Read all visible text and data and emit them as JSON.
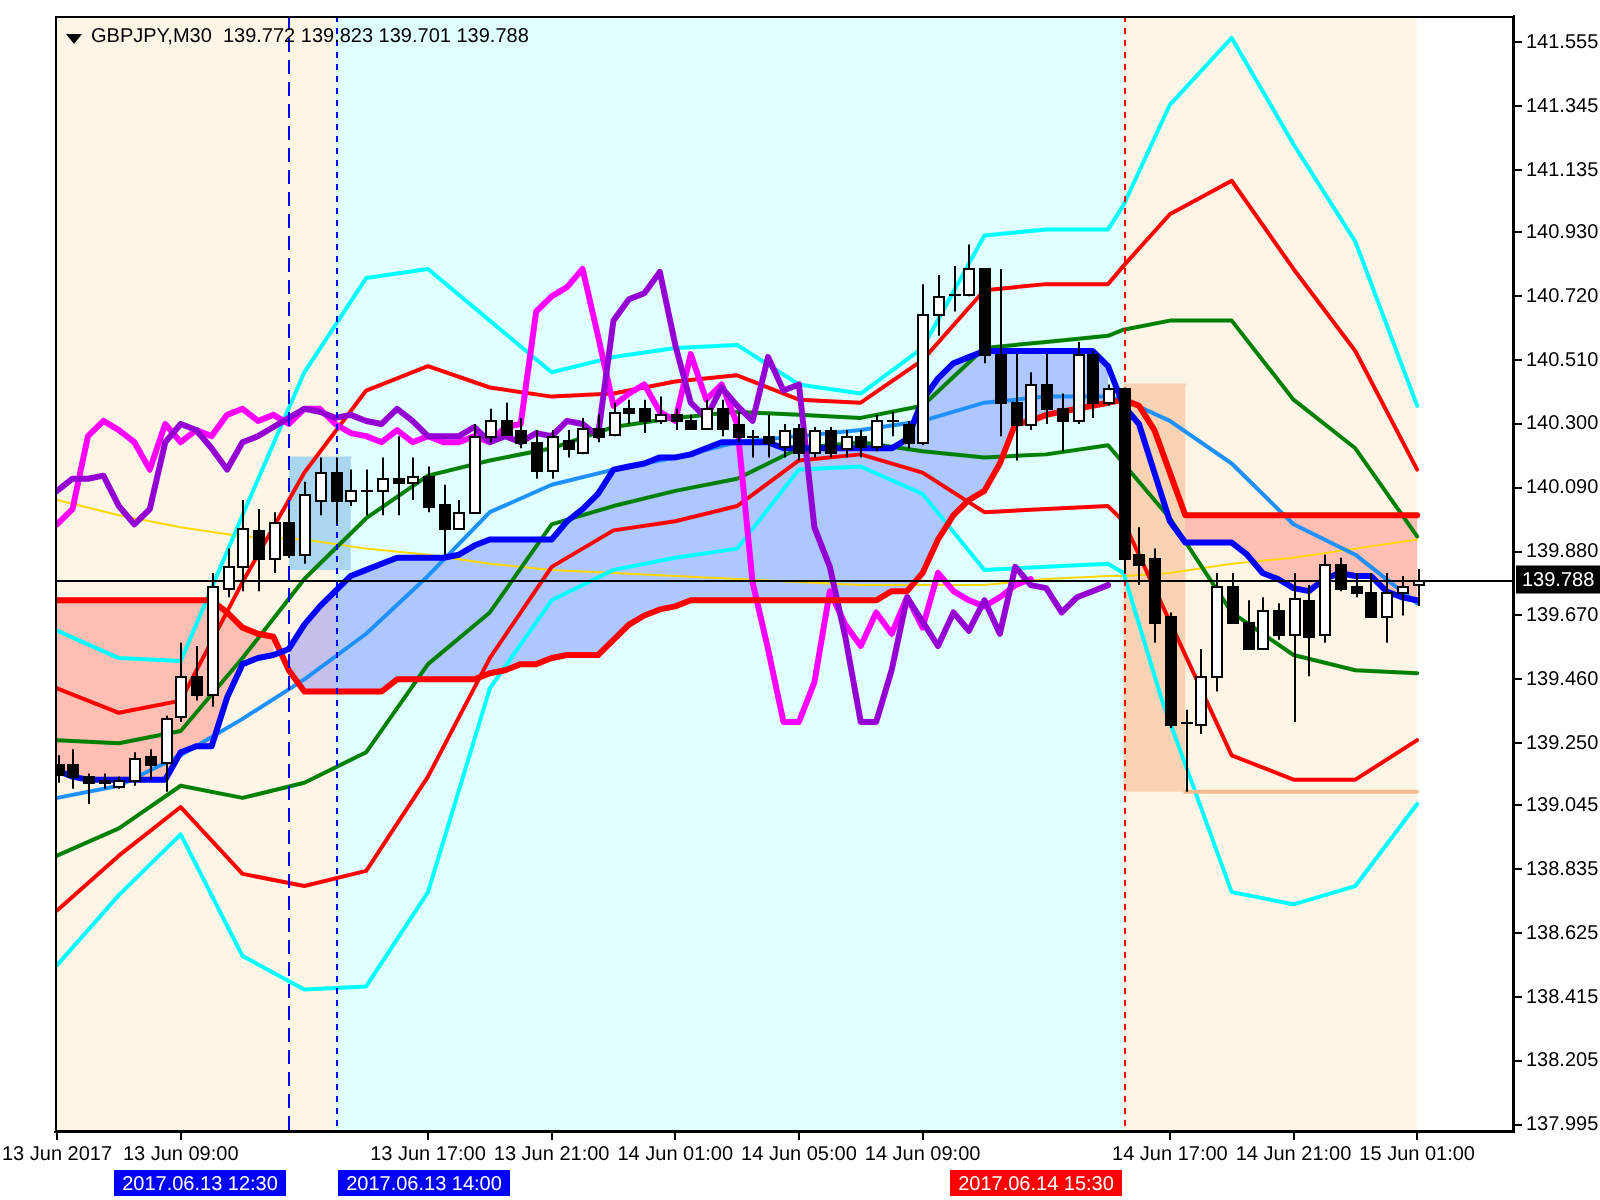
{
  "chart_data": {
    "type": "candlestick",
    "title": "GBPJPY,M30  139.772 139.823 139.701 139.788",
    "x": [
      "2017-06-13T05:00",
      "2017-06-13T05:30",
      "2017-06-13T06:00",
      "2017-06-13T06:30",
      "2017-06-13T07:00",
      "2017-06-13T07:30",
      "2017-06-13T08:00",
      "2017-06-13T08:30",
      "2017-06-13T09:00",
      "2017-06-13T09:30",
      "2017-06-13T10:00",
      "2017-06-13T10:30",
      "2017-06-13T11:00",
      "2017-06-13T11:30",
      "2017-06-13T12:00",
      "2017-06-13T12:30",
      "2017-06-13T13:00",
      "2017-06-13T13:30",
      "2017-06-13T14:00",
      "2017-06-13T14:30",
      "2017-06-13T15:00",
      "2017-06-13T15:30",
      "2017-06-13T16:00",
      "2017-06-13T16:30",
      "2017-06-13T17:00",
      "2017-06-13T17:30",
      "2017-06-13T18:00",
      "2017-06-13T18:30",
      "2017-06-13T19:00",
      "2017-06-13T19:30",
      "2017-06-13T20:00",
      "2017-06-13T20:30",
      "2017-06-13T21:00",
      "2017-06-13T21:30",
      "2017-06-13T22:00",
      "2017-06-13T22:30",
      "2017-06-13T23:00",
      "2017-06-13T23:30",
      "2017-06-14T00:00",
      "2017-06-14T00:30",
      "2017-06-14T01:00",
      "2017-06-14T01:30",
      "2017-06-14T02:00",
      "2017-06-14T02:30",
      "2017-06-14T03:00",
      "2017-06-14T03:30",
      "2017-06-14T04:00",
      "2017-06-14T04:30",
      "2017-06-14T05:00",
      "2017-06-14T05:30",
      "2017-06-14T06:00",
      "2017-06-14T06:30",
      "2017-06-14T07:00",
      "2017-06-14T07:30",
      "2017-06-14T08:00",
      "2017-06-14T08:30",
      "2017-06-14T09:00",
      "2017-06-14T09:30",
      "2017-06-14T10:00",
      "2017-06-14T10:30",
      "2017-06-14T11:00",
      "2017-06-14T11:30",
      "2017-06-14T12:00",
      "2017-06-14T12:30",
      "2017-06-14T13:00",
      "2017-06-14T13:30",
      "2017-06-14T14:00",
      "2017-06-14T14:30",
      "2017-06-14T15:00",
      "2017-06-14T15:30",
      "2017-06-14T16:00",
      "2017-06-14T16:30",
      "2017-06-14T17:00",
      "2017-06-14T17:30",
      "2017-06-14T18:00",
      "2017-06-14T18:30",
      "2017-06-14T19:00",
      "2017-06-14T19:30",
      "2017-06-14T20:00",
      "2017-06-14T20:30",
      "2017-06-14T21:00",
      "2017-06-14T21:30",
      "2017-06-14T22:00",
      "2017-06-14T22:30",
      "2017-06-14T23:00",
      "2017-06-14T23:30",
      "2017-06-15T00:00",
      "2017-06-15T00:30",
      "2017-06-15T01:00"
    ],
    "ohlc": [
      [
        139.18,
        139.21,
        139.12,
        139.15
      ],
      [
        139.18,
        139.23,
        139.1,
        139.14
      ],
      [
        139.14,
        139.15,
        139.05,
        139.12
      ],
      [
        139.13,
        139.15,
        139.1,
        139.12
      ],
      [
        139.11,
        139.14,
        139.1,
        139.13
      ],
      [
        139.13,
        139.22,
        139.11,
        139.2
      ],
      [
        139.21,
        139.23,
        139.13,
        139.18
      ],
      [
        139.19,
        139.34,
        139.09,
        139.33
      ],
      [
        139.34,
        139.58,
        139.32,
        139.47
      ],
      [
        139.47,
        139.57,
        139.39,
        139.41
      ],
      [
        139.41,
        139.81,
        139.37,
        139.77
      ],
      [
        139.76,
        139.89,
        139.73,
        139.83
      ],
      [
        139.83,
        140.05,
        139.75,
        139.96
      ],
      [
        139.95,
        140.02,
        139.75,
        139.86
      ],
      [
        139.86,
        140.01,
        139.81,
        139.98
      ],
      [
        139.98,
        140.02,
        139.86,
        139.87
      ],
      [
        139.87,
        140.11,
        139.84,
        140.07
      ],
      [
        140.05,
        140.19,
        140.0,
        140.14
      ],
      [
        140.14,
        140.19,
        139.97,
        140.05
      ],
      [
        140.05,
        140.15,
        140.03,
        140.08
      ],
      [
        140.08,
        140.15,
        140.0,
        140.08
      ],
      [
        140.08,
        140.19,
        140.0,
        140.12
      ],
      [
        140.12,
        140.26,
        140.0,
        140.11
      ],
      [
        140.11,
        140.19,
        140.05,
        140.13
      ],
      [
        140.13,
        140.16,
        140.01,
        140.03
      ],
      [
        140.04,
        140.1,
        139.87,
        139.96
      ],
      [
        139.96,
        140.05,
        139.96,
        140.01
      ],
      [
        140.01,
        140.3,
        140.01,
        140.26
      ],
      [
        140.26,
        140.35,
        140.24,
        140.31
      ],
      [
        140.31,
        140.37,
        140.26,
        140.27
      ],
      [
        140.28,
        140.32,
        140.22,
        140.24
      ],
      [
        140.24,
        140.28,
        140.12,
        140.15
      ],
      [
        140.15,
        140.28,
        140.12,
        140.26
      ],
      [
        140.25,
        140.28,
        140.19,
        140.22
      ],
      [
        140.21,
        140.32,
        140.2,
        140.29
      ],
      [
        140.29,
        140.33,
        140.24,
        140.26
      ],
      [
        140.27,
        140.37,
        140.26,
        140.34
      ],
      [
        140.35,
        140.38,
        140.3,
        140.34
      ],
      [
        140.35,
        140.38,
        140.27,
        140.31
      ],
      [
        140.31,
        140.39,
        140.3,
        140.33
      ],
      [
        140.33,
        140.35,
        140.28,
        140.31
      ],
      [
        140.31,
        140.33,
        140.28,
        140.29
      ],
      [
        140.29,
        140.38,
        140.28,
        140.35
      ],
      [
        140.35,
        140.38,
        140.26,
        140.29
      ],
      [
        140.3,
        140.34,
        140.24,
        140.26
      ],
      [
        140.26,
        140.28,
        140.19,
        140.26
      ],
      [
        140.26,
        140.33,
        140.19,
        140.24
      ],
      [
        140.23,
        140.3,
        140.19,
        140.28
      ],
      [
        140.29,
        140.3,
        140.18,
        140.21
      ],
      [
        140.21,
        140.29,
        140.19,
        140.28
      ],
      [
        140.28,
        140.29,
        140.19,
        140.21
      ],
      [
        140.22,
        140.28,
        140.19,
        140.26
      ],
      [
        140.26,
        140.28,
        140.19,
        140.23
      ],
      [
        140.23,
        140.33,
        140.21,
        140.31
      ],
      [
        140.31,
        140.34,
        140.26,
        140.31
      ],
      [
        140.3,
        140.31,
        140.22,
        140.24
      ],
      [
        140.24,
        140.76,
        140.23,
        140.66
      ],
      [
        140.66,
        140.79,
        140.59,
        140.72
      ],
      [
        140.73,
        140.82,
        140.67,
        140.73
      ],
      [
        140.73,
        140.89,
        140.72,
        140.81
      ],
      [
        140.81,
        140.81,
        140.5,
        140.53
      ],
      [
        140.53,
        140.81,
        140.26,
        140.37
      ],
      [
        140.37,
        140.53,
        140.18,
        140.3
      ],
      [
        140.3,
        140.47,
        140.28,
        140.43
      ],
      [
        140.43,
        140.53,
        140.3,
        140.35
      ],
      [
        140.35,
        140.4,
        140.21,
        140.31
      ],
      [
        140.31,
        140.57,
        140.3,
        140.53
      ],
      [
        140.53,
        140.54,
        140.32,
        140.37
      ],
      [
        140.37,
        140.43,
        140.36,
        140.42
      ],
      [
        140.42,
        140.42,
        139.81,
        139.86
      ],
      [
        139.87,
        139.96,
        139.77,
        139.84
      ],
      [
        139.86,
        139.89,
        139.58,
        139.65
      ],
      [
        139.67,
        139.68,
        139.3,
        139.31
      ],
      [
        139.32,
        139.36,
        139.09,
        139.32
      ],
      [
        139.31,
        139.56,
        139.28,
        139.47
      ],
      [
        139.47,
        139.81,
        139.42,
        139.77
      ],
      [
        139.77,
        139.81,
        139.65,
        139.65
      ],
      [
        139.65,
        139.72,
        139.56,
        139.56
      ],
      [
        139.56,
        139.73,
        139.56,
        139.69
      ],
      [
        139.69,
        139.71,
        139.59,
        139.61
      ],
      [
        139.61,
        139.81,
        139.32,
        139.73
      ],
      [
        139.72,
        139.77,
        139.47,
        139.6
      ],
      [
        139.61,
        139.87,
        139.58,
        139.84
      ],
      [
        139.84,
        139.86,
        139.75,
        139.76
      ],
      [
        139.77,
        139.81,
        139.73,
        139.75
      ],
      [
        139.75,
        139.81,
        139.67,
        139.67
      ],
      [
        139.67,
        139.81,
        139.58,
        139.75
      ],
      [
        139.75,
        139.8,
        139.67,
        139.77
      ],
      [
        139.772,
        139.823,
        139.701,
        139.788
      ]
    ],
    "series": [
      {
        "type": "line",
        "color": "#ffd700",
        "x": [
          "2017-06-13T05:00",
          "2017-06-13T07:00",
          "2017-06-13T09:00",
          "2017-06-13T11:00",
          "2017-06-13T13:00",
          "2017-06-13T15:00",
          "2017-06-13T17:00",
          "2017-06-13T19:00",
          "2017-06-13T21:00",
          "2017-06-13T23:00",
          "2017-06-14T01:00",
          "2017-06-14T03:00",
          "2017-06-14T05:00",
          "2017-06-14T07:00",
          "2017-06-14T09:00",
          "2017-06-14T11:00",
          "2017-06-14T13:00",
          "2017-06-14T15:00",
          "2017-06-14T15:30",
          "2017-06-14T17:00",
          "2017-06-14T19:00",
          "2017-06-14T21:00",
          "2017-06-14T23:00",
          "2017-06-15T01:00"
        ],
        "values": [
          140.05,
          140.0,
          139.96,
          139.93,
          139.92,
          139.89,
          139.87,
          139.84,
          139.82,
          139.81,
          139.8,
          139.79,
          139.78,
          139.77,
          139.77,
          139.77,
          139.79,
          139.8,
          139.8,
          139.81,
          139.84,
          139.86,
          139.89,
          139.92
        ]
      },
      {
        "type": "line",
        "color": "#00ffff",
        "x": [
          "2017-06-13T05:00",
          "2017-06-13T07:00",
          "2017-06-13T09:00",
          "2017-06-13T11:00",
          "2017-06-13T13:00",
          "2017-06-13T15:00",
          "2017-06-13T17:00",
          "2017-06-13T19:00",
          "2017-06-13T21:00",
          "2017-06-13T23:00",
          "2017-06-14T01:00",
          "2017-06-14T03:00",
          "2017-06-14T05:00",
          "2017-06-14T07:00",
          "2017-06-14T09:00",
          "2017-06-14T11:00",
          "2017-06-14T13:00",
          "2017-06-14T15:00",
          "2017-06-14T15:30",
          "2017-06-14T17:00",
          "2017-06-14T19:00",
          "2017-06-14T21:00",
          "2017-06-14T23:00",
          "2017-06-15T01:00"
        ],
        "values": [
          139.62,
          139.53,
          139.52,
          140.0,
          140.47,
          140.78,
          140.81,
          140.64,
          140.47,
          140.52,
          140.55,
          140.56,
          140.43,
          140.4,
          140.55,
          140.92,
          140.94,
          140.94,
          141.02,
          141.35,
          141.57,
          141.22,
          140.9,
          140.36
        ]
      },
      {
        "type": "line",
        "color": "#ff0000",
        "x": [
          "2017-06-13T05:00",
          "2017-06-13T07:00",
          "2017-06-13T09:00",
          "2017-06-13T11:00",
          "2017-06-13T13:00",
          "2017-06-13T15:00",
          "2017-06-13T17:00",
          "2017-06-13T19:00",
          "2017-06-13T21:00",
          "2017-06-13T23:00",
          "2017-06-14T01:00",
          "2017-06-14T03:00",
          "2017-06-14T05:00",
          "2017-06-14T07:00",
          "2017-06-14T09:00",
          "2017-06-14T11:00",
          "2017-06-14T13:00",
          "2017-06-14T15:00",
          "2017-06-14T15:30",
          "2017-06-14T17:00",
          "2017-06-14T19:00",
          "2017-06-14T21:00",
          "2017-06-14T23:00",
          "2017-06-15T01:00"
        ],
        "values": [
          139.43,
          139.35,
          139.39,
          139.78,
          140.14,
          140.41,
          140.49,
          140.42,
          140.39,
          140.4,
          140.44,
          140.46,
          140.38,
          140.37,
          140.51,
          140.74,
          140.76,
          140.76,
          140.82,
          140.99,
          141.1,
          140.81,
          140.54,
          140.15
        ]
      },
      {
        "type": "line",
        "color": "#008000",
        "x": [
          "2017-06-13T05:00",
          "2017-06-13T07:00",
          "2017-06-13T09:00",
          "2017-06-13T11:00",
          "2017-06-13T13:00",
          "2017-06-13T15:00",
          "2017-06-13T17:00",
          "2017-06-13T19:00",
          "2017-06-13T21:00",
          "2017-06-13T23:00",
          "2017-06-14T01:00",
          "2017-06-14T03:00",
          "2017-06-14T05:00",
          "2017-06-14T07:00",
          "2017-06-14T09:00",
          "2017-06-14T11:00",
          "2017-06-14T13:00",
          "2017-06-14T15:00",
          "2017-06-14T15:30",
          "2017-06-14T17:00",
          "2017-06-14T19:00",
          "2017-06-14T21:00",
          "2017-06-14T23:00",
          "2017-06-15T01:00"
        ],
        "values": [
          139.26,
          139.25,
          139.29,
          139.53,
          139.79,
          139.99,
          140.13,
          140.18,
          140.22,
          140.29,
          140.32,
          140.34,
          140.33,
          140.32,
          140.36,
          140.55,
          140.57,
          140.59,
          140.61,
          140.64,
          140.64,
          140.38,
          140.22,
          139.93
        ]
      },
      {
        "type": "line",
        "color": "#1e90ff",
        "x": [
          "2017-06-13T05:00",
          "2017-06-13T07:00",
          "2017-06-13T09:00",
          "2017-06-13T11:00",
          "2017-06-13T13:00",
          "2017-06-13T15:00",
          "2017-06-13T17:00",
          "2017-06-13T19:00",
          "2017-06-13T21:00",
          "2017-06-13T23:00",
          "2017-06-14T01:00",
          "2017-06-14T03:00",
          "2017-06-14T05:00",
          "2017-06-14T07:00",
          "2017-06-14T09:00",
          "2017-06-14T11:00",
          "2017-06-14T13:00",
          "2017-06-14T15:00",
          "2017-06-14T15:30",
          "2017-06-14T17:00",
          "2017-06-14T19:00",
          "2017-06-14T21:00",
          "2017-06-14T23:00",
          "2017-06-15T01:00"
        ],
        "values": [
          139.07,
          139.11,
          139.21,
          139.33,
          139.46,
          139.61,
          139.8,
          140.01,
          140.1,
          140.15,
          140.19,
          140.24,
          140.26,
          140.28,
          140.31,
          140.37,
          140.39,
          140.39,
          140.38,
          140.31,
          140.17,
          139.97,
          139.87,
          139.71
        ]
      },
      {
        "type": "line",
        "color": "#008000",
        "x": [
          "2017-06-13T05:00",
          "2017-06-13T07:00",
          "2017-06-13T09:00",
          "2017-06-13T11:00",
          "2017-06-13T13:00",
          "2017-06-13T15:00",
          "2017-06-13T17:00",
          "2017-06-13T19:00",
          "2017-06-13T21:00",
          "2017-06-13T23:00",
          "2017-06-14T01:00",
          "2017-06-14T03:00",
          "2017-06-14T05:00",
          "2017-06-14T07:00",
          "2017-06-14T09:00",
          "2017-06-14T11:00",
          "2017-06-14T13:00",
          "2017-06-14T15:00",
          "2017-06-14T15:30",
          "2017-06-14T17:00",
          "2017-06-14T19:00",
          "2017-06-14T21:00",
          "2017-06-14T23:00",
          "2017-06-15T01:00"
        ],
        "values": [
          138.88,
          138.97,
          139.11,
          139.07,
          139.12,
          139.22,
          139.51,
          139.68,
          139.97,
          140.03,
          140.08,
          140.12,
          140.22,
          140.24,
          140.21,
          140.19,
          140.2,
          140.23,
          140.17,
          139.99,
          139.68,
          139.54,
          139.49,
          139.48
        ]
      },
      {
        "type": "line",
        "color": "#ff0000",
        "x": [
          "2017-06-13T05:00",
          "2017-06-13T07:00",
          "2017-06-13T09:00",
          "2017-06-13T11:00",
          "2017-06-13T13:00",
          "2017-06-13T15:00",
          "2017-06-13T17:00",
          "2017-06-13T19:00",
          "2017-06-13T21:00",
          "2017-06-13T23:00",
          "2017-06-14T01:00",
          "2017-06-14T03:00",
          "2017-06-14T05:00",
          "2017-06-14T07:00",
          "2017-06-14T09:00",
          "2017-06-14T11:00",
          "2017-06-14T13:00",
          "2017-06-14T15:00",
          "2017-06-14T15:30",
          "2017-06-14T17:00",
          "2017-06-14T19:00",
          "2017-06-14T21:00",
          "2017-06-14T23:00",
          "2017-06-15T01:00"
        ],
        "values": [
          138.7,
          138.88,
          139.04,
          138.82,
          138.78,
          138.83,
          139.14,
          139.53,
          139.83,
          139.95,
          139.98,
          140.03,
          140.18,
          140.2,
          140.14,
          140.01,
          140.02,
          140.03,
          139.98,
          139.65,
          139.21,
          139.13,
          139.13,
          139.26
        ]
      },
      {
        "type": "line",
        "color": "#00ffff",
        "x": [
          "2017-06-13T05:00",
          "2017-06-13T07:00",
          "2017-06-13T09:00",
          "2017-06-13T11:00",
          "2017-06-13T13:00",
          "2017-06-13T15:00",
          "2017-06-13T17:00",
          "2017-06-13T19:00",
          "2017-06-13T21:00",
          "2017-06-13T23:00",
          "2017-06-14T01:00",
          "2017-06-14T03:00",
          "2017-06-14T05:00",
          "2017-06-14T07:00",
          "2017-06-14T09:00",
          "2017-06-14T11:00",
          "2017-06-14T13:00",
          "2017-06-14T15:00",
          "2017-06-14T15:30",
          "2017-06-14T16:45",
          "2017-06-14T19:00",
          "2017-06-14T21:00",
          "2017-06-14T23:00",
          "2017-06-15T01:00"
        ],
        "values": [
          138.52,
          138.75,
          138.95,
          138.55,
          138.44,
          138.45,
          138.76,
          139.43,
          139.72,
          139.82,
          139.86,
          139.89,
          140.15,
          140.16,
          140.07,
          139.82,
          139.83,
          139.84,
          139.81,
          139.39,
          138.76,
          138.72,
          138.78,
          139.05
        ]
      },
      {
        "type": "line",
        "color": "#ff00ff",
        "values": [
          139.97,
          140.02,
          140.26,
          140.31,
          140.28,
          140.24,
          140.15,
          140.3,
          140.24,
          140.28,
          140.26,
          140.33,
          140.35,
          140.31,
          140.33,
          140.3,
          140.35,
          140.35,
          140.3,
          140.27,
          140.26,
          140.24,
          140.28,
          140.24,
          140.26,
          140.24,
          140.24,
          140.26,
          140.24,
          140.29,
          140.3,
          140.67,
          140.72,
          140.75,
          140.81,
          140.59,
          140.36,
          140.4,
          140.43,
          140.34,
          140.31,
          140.53,
          140.38,
          140.43,
          140.3,
          139.78,
          139.56,
          139.32,
          139.32,
          139.45,
          139.75,
          139.64,
          139.57,
          139.68,
          139.61,
          139.73,
          139.63,
          139.81,
          139.75,
          139.72,
          139.7,
          139.73,
          139.77,
          139.79,
          null,
          null,
          null,
          null,
          null,
          null,
          null,
          null,
          null,
          null,
          null,
          null,
          null,
          null,
          null,
          null,
          null,
          null,
          null,
          null,
          null,
          null,
          null,
          null,
          null
        ]
      },
      {
        "type": "line",
        "color": "#9400d3",
        "values": [
          140.08,
          140.12,
          140.12,
          140.13,
          140.03,
          139.97,
          140.02,
          140.24,
          140.3,
          140.28,
          140.22,
          140.15,
          140.24,
          140.26,
          140.29,
          140.32,
          140.35,
          140.34,
          140.32,
          140.33,
          140.31,
          140.3,
          140.35,
          140.31,
          140.26,
          140.26,
          140.26,
          140.29,
          140.24,
          140.26,
          140.24,
          140.27,
          140.26,
          140.31,
          140.3,
          140.26,
          140.64,
          140.71,
          140.73,
          140.8,
          140.56,
          140.37,
          140.32,
          140.42,
          140.36,
          140.31,
          140.52,
          140.41,
          140.43,
          139.96,
          139.83,
          139.6,
          139.32,
          139.32,
          139.49,
          139.73,
          139.65,
          139.57,
          139.68,
          139.62,
          139.72,
          139.61,
          139.83,
          139.77,
          139.76,
          139.68,
          139.73,
          139.75,
          139.77,
          null,
          null,
          null,
          null,
          null,
          null,
          null,
          null,
          null,
          null,
          null,
          null,
          null,
          null,
          null,
          null,
          null,
          null,
          null,
          null
        ]
      },
      {
        "type": "line",
        "color": "#ff0000",
        "values": [
          139.72,
          139.72,
          139.72,
          139.72,
          139.72,
          139.72,
          139.72,
          139.72,
          139.72,
          139.72,
          139.72,
          139.68,
          139.63,
          139.61,
          139.6,
          139.49,
          139.42,
          139.42,
          139.42,
          139.42,
          139.42,
          139.42,
          139.46,
          139.46,
          139.46,
          139.46,
          139.46,
          139.46,
          139.48,
          139.49,
          139.51,
          139.51,
          139.53,
          139.54,
          139.54,
          139.54,
          139.59,
          139.64,
          139.67,
          139.69,
          139.7,
          139.72,
          139.72,
          139.72,
          139.72,
          139.72,
          139.72,
          139.72,
          139.72,
          139.72,
          139.72,
          139.72,
          139.72,
          139.72,
          139.75,
          139.75,
          139.81,
          139.92,
          140.0,
          140.05,
          140.08,
          140.17,
          140.3,
          140.31,
          140.33,
          140.34,
          140.35,
          140.36,
          140.37,
          140.38,
          140.36,
          140.28,
          140.14,
          140.0,
          140.0,
          140.0,
          140.0,
          140.0,
          140.0,
          140.0,
          140.0,
          140.0,
          140.0,
          140.0,
          140.0,
          140.0,
          140.0,
          140.0,
          140.0
        ],
        "lower": [
          139.16,
          139.14,
          139.13,
          139.13,
          139.13,
          139.13,
          139.13,
          139.13,
          139.22,
          139.24,
          139.24,
          139.4,
          139.51,
          139.53,
          139.54,
          null,
          null,
          null,
          null,
          null,
          null,
          null,
          null,
          null,
          null,
          null,
          null,
          null,
          null,
          null,
          null,
          null,
          null,
          null,
          null,
          null,
          null,
          null,
          null,
          null,
          null,
          null,
          null,
          null,
          null,
          null,
          null,
          null,
          null,
          null,
          null,
          null,
          null,
          null,
          null,
          null,
          null,
          null,
          null,
          null,
          null,
          null,
          null,
          null,
          null,
          null,
          null,
          null,
          null,
          140.36,
          140.3,
          140.14,
          139.98,
          139.91,
          139.91,
          139.91,
          139.91,
          139.87,
          139.81,
          139.79,
          139.76,
          139.75,
          139.79,
          139.81,
          139.8,
          139.8,
          139.75,
          139.73,
          139.72
        ],
        "upper": [
          139.72,
          139.72,
          139.72,
          139.72,
          139.72,
          139.72,
          139.72,
          139.72,
          139.72,
          139.72,
          139.72,
          139.68,
          139.63,
          139.61,
          139.6,
          null,
          null,
          null,
          null,
          null,
          null,
          null,
          null,
          null,
          null,
          null,
          null,
          null,
          null,
          null,
          null,
          null,
          null,
          null,
          null,
          null,
          null,
          null,
          null,
          null,
          null,
          null,
          null,
          null,
          null,
          null,
          null,
          null,
          null,
          null,
          null,
          null,
          null,
          null,
          null,
          null,
          null,
          null,
          null,
          null,
          null,
          null,
          null,
          null,
          null,
          null,
          null,
          null,
          null,
          140.38,
          140.36,
          140.28,
          140.14,
          140.0,
          140.0,
          140.0,
          140.0,
          140.0,
          140.0,
          140.0,
          140.0,
          140.0,
          140.0,
          140.0,
          140.0,
          140.0,
          140.0,
          140.0,
          140.0
        ]
      },
      {
        "type": "line",
        "color": "#0000ff",
        "values": [
          139.16,
          139.14,
          139.13,
          139.13,
          139.13,
          139.13,
          139.13,
          139.13,
          139.22,
          139.24,
          139.24,
          139.4,
          139.51,
          139.53,
          139.54,
          139.56,
          139.64,
          139.7,
          139.75,
          139.8,
          139.82,
          139.84,
          139.86,
          139.86,
          139.86,
          139.86,
          139.87,
          139.9,
          139.92,
          139.92,
          139.92,
          139.92,
          139.92,
          139.98,
          140.02,
          140.07,
          140.15,
          140.16,
          140.17,
          140.19,
          140.19,
          140.2,
          140.22,
          140.24,
          140.24,
          140.24,
          140.24,
          140.22,
          140.22,
          140.22,
          140.22,
          140.22,
          140.22,
          140.22,
          140.22,
          140.25,
          140.38,
          140.45,
          140.5,
          140.52,
          140.54,
          140.54,
          140.54,
          140.54,
          140.54,
          140.54,
          140.54,
          140.54,
          140.49,
          140.36,
          140.3,
          140.14,
          139.98,
          139.91,
          139.91,
          139.91,
          139.91,
          139.87,
          139.81,
          139.79,
          139.76,
          139.75,
          139.79,
          139.81,
          139.8,
          139.8,
          139.75,
          139.73,
          139.72
        ],
        "lower": [
          null,
          null,
          null,
          null,
          null,
          null,
          null,
          null,
          null,
          null,
          null,
          null,
          null,
          null,
          null,
          139.49,
          139.42,
          139.42,
          139.42,
          139.42,
          139.42,
          139.42,
          139.46,
          139.46,
          139.46,
          139.46,
          139.46,
          139.46,
          139.48,
          139.49,
          139.51,
          139.51,
          139.53,
          139.54,
          139.54,
          139.54,
          139.59,
          139.64,
          139.67,
          139.69,
          139.7,
          139.72,
          139.72,
          139.72,
          139.72,
          139.72,
          139.72,
          139.72,
          139.72,
          139.72,
          139.72,
          139.72,
          139.72,
          139.72,
          139.75,
          139.75,
          139.81,
          139.92,
          140.0,
          140.05,
          140.08,
          140.17,
          140.3,
          140.31,
          140.33,
          140.34,
          140.35,
          140.36,
          140.37,
          null,
          null,
          null,
          null,
          null,
          null,
          null,
          null,
          null,
          null,
          null,
          null,
          null,
          null,
          null,
          null,
          null,
          null,
          null,
          null
        ],
        "upper": [
          null,
          null,
          null,
          null,
          null,
          null,
          null,
          null,
          null,
          null,
          null,
          null,
          null,
          null,
          null,
          139.56,
          139.64,
          139.7,
          139.75,
          139.8,
          139.82,
          139.84,
          139.86,
          139.86,
          139.86,
          139.86,
          139.87,
          139.9,
          139.92,
          139.92,
          139.92,
          139.92,
          139.92,
          139.98,
          140.02,
          140.07,
          140.15,
          140.16,
          140.17,
          140.19,
          140.19,
          140.2,
          140.22,
          140.24,
          140.24,
          140.24,
          140.24,
          140.22,
          140.22,
          140.22,
          140.22,
          140.22,
          140.22,
          140.22,
          140.22,
          140.25,
          140.38,
          140.45,
          140.5,
          140.52,
          140.54,
          140.54,
          140.54,
          140.54,
          140.54,
          140.54,
          140.54,
          140.54,
          140.49,
          null,
          null,
          null,
          null,
          null,
          null,
          null,
          null,
          null,
          null,
          null,
          null,
          null,
          null,
          null,
          null,
          null,
          null,
          null,
          null
        ]
      },
      {
        "type": "line",
        "color": "#fad2b4",
        "x": [
          "2017-06-14T15:30",
          "2017-06-14T17:30"
        ],
        "values": [
          140.43,
          140.43
        ],
        "lower": [
          139.09,
          139.09
        ],
        "upper": [
          140.43,
          140.43
        ]
      },
      {
        "type": "line",
        "color": "#f2bd92",
        "x": [
          "2017-06-14T17:30",
          "2017-06-15T01:00"
        ],
        "values": [
          139.09,
          139.09
        ]
      },
      {
        "type": "line",
        "color": "#aad6f0",
        "x": [
          "2017-06-13T12:30",
          "2017-06-13T14:30"
        ],
        "values": [
          140.19,
          140.19
        ],
        "lower": [
          139.82,
          139.82
        ],
        "upper": [
          140.19,
          140.19
        ]
      }
    ],
    "xlim": [
      "2017-06-13T04:56",
      "2017-06-15T04:08"
    ],
    "ylim": [
      137.971,
      141.642
    ],
    "xticks": [
      {
        "value": "2017-06-13T05:00",
        "label": "13 Jun 2017"
      },
      {
        "value": "2017-06-13T09:00",
        "label": "13 Jun 09:00"
      },
      {
        "value": "2017-06-13T17:00",
        "label": "13 Jun 17:00"
      },
      {
        "value": "2017-06-13T21:00",
        "label": "13 Jun 21:00"
      },
      {
        "value": "2017-06-14T01:00",
        "label": "14 Jun 01:00"
      },
      {
        "value": "2017-06-14T05:00",
        "label": "14 Jun 05:00"
      },
      {
        "value": "2017-06-14T09:00",
        "label": "14 Jun 09:00"
      },
      {
        "value": "2017-06-14T17:00",
        "label": "14 Jun 17:00"
      },
      {
        "value": "2017-06-14T21:00",
        "label": "14 Jun 21:00"
      },
      {
        "value": "2017-06-15T01:00",
        "label": "15 Jun 01:00"
      }
    ],
    "yticks": [
      137.995,
      138.205,
      138.415,
      138.625,
      138.835,
      139.045,
      {
        "value": 139.25,
        "label": "139.250"
      },
      {
        "value": 139.46,
        "label": "139.460"
      },
      {
        "value": 139.67,
        "label": "139.670"
      },
      {
        "value": 139.88,
        "label": "139.880"
      },
      {
        "value": 140.09,
        "label": "140.090"
      },
      {
        "value": 140.3,
        "label": "140.300"
      },
      {
        "value": 140.51,
        "label": "140.510"
      },
      {
        "value": 140.72,
        "label": "140.720"
      },
      {
        "value": 140.93,
        "label": "140.930"
      },
      141.135,
      141.345,
      141.555
    ],
    "ref_lines": [
      {
        "axis": "x",
        "value": "2017-06-13T12:30",
        "label": "2017.06.13 12:30",
        "color": "#0000ff",
        "line_style": "dashed"
      },
      {
        "axis": "x",
        "value": "2017-06-13T14:00",
        "label": "2017.06.13 14:00",
        "color": "#0000ff",
        "line_style": "dotted"
      },
      {
        "axis": "x",
        "value": "2017-06-14T15:30",
        "label": "2017.06.14 15:30",
        "color": "#ff0000",
        "line_style": "dotted"
      },
      {
        "axis": "y",
        "value": 139.788,
        "label": "139.788",
        "color": "#000000",
        "line_style": "solid"
      }
    ],
    "bands": [
      {
        "axis": "x",
        "from": "2017-06-13T04:56",
        "to": "2017-06-13T14:00",
        "color": "#fdf5e6"
      },
      {
        "axis": "x",
        "from": "2017-06-13T14:00",
        "to": "2017-06-14T15:30",
        "color": "#e0ffff"
      },
      {
        "axis": "x",
        "from": "2017-06-14T15:30",
        "to": "2017-06-15T01:00",
        "color": "#fdf5e6"
      }
    ]
  }
}
